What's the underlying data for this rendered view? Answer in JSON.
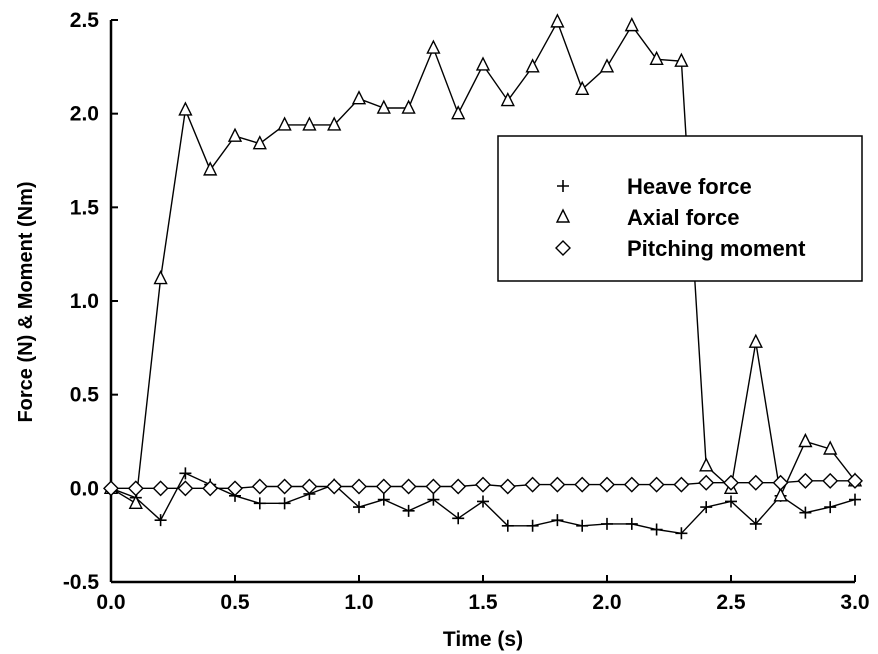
{
  "chart_data": {
    "type": "line",
    "title": "",
    "xlabel": "Time (s)",
    "ylabel": "Force (N) & Moment (Nm)",
    "xlim": [
      0.0,
      3.0
    ],
    "ylim": [
      -0.5,
      2.5
    ],
    "xticks": [
      0.0,
      0.5,
      1.0,
      1.5,
      2.0,
      2.5,
      3.0
    ],
    "xtick_labels": [
      "0.0",
      "0.5",
      "1.0",
      "1.5",
      "2.0",
      "2.5",
      "3.0"
    ],
    "yticks": [
      -0.5,
      0.0,
      0.5,
      1.0,
      1.5,
      2.0,
      2.5
    ],
    "ytick_labels": [
      "-0.5",
      "0.0",
      "0.5",
      "1.0",
      "1.5",
      "2.0",
      "2.5"
    ],
    "grid": false,
    "legend_position": "upper-right",
    "x": [
      0.0,
      0.1,
      0.2,
      0.3,
      0.4,
      0.5,
      0.6,
      0.7,
      0.8,
      0.9,
      1.0,
      1.1,
      1.2,
      1.3,
      1.4,
      1.5,
      1.6,
      1.7,
      1.8,
      1.9,
      2.0,
      2.1,
      2.2,
      2.3,
      2.4,
      2.5,
      2.6,
      2.7,
      2.8,
      2.9,
      3.0
    ],
    "series": [
      {
        "name": "Heave force",
        "marker": "plus",
        "values": [
          0.0,
          -0.05,
          -0.17,
          0.08,
          0.02,
          -0.04,
          -0.08,
          -0.08,
          -0.03,
          0.02,
          -0.1,
          -0.06,
          -0.12,
          -0.06,
          -0.16,
          -0.07,
          -0.2,
          -0.2,
          -0.17,
          -0.2,
          -0.19,
          -0.19,
          -0.22,
          -0.24,
          -0.1,
          -0.07,
          -0.19,
          -0.04,
          -0.13,
          -0.1,
          -0.06
        ]
      },
      {
        "name": "Axial force",
        "marker": "triangle",
        "values": [
          0.0,
          -0.08,
          1.12,
          2.02,
          1.7,
          1.88,
          1.84,
          1.94,
          1.94,
          1.94,
          2.08,
          2.03,
          2.03,
          2.35,
          2.0,
          2.26,
          2.07,
          2.25,
          2.49,
          2.13,
          2.25,
          2.47,
          2.29,
          2.28,
          0.12,
          0.0,
          0.78,
          -0.04,
          0.25,
          0.21,
          0.04
        ]
      },
      {
        "name": "Pitching moment",
        "marker": "diamond",
        "values": [
          0.0,
          0.0,
          0.0,
          0.0,
          0.0,
          0.0,
          0.01,
          0.01,
          0.01,
          0.01,
          0.01,
          0.01,
          0.01,
          0.01,
          0.01,
          0.02,
          0.01,
          0.02,
          0.02,
          0.02,
          0.02,
          0.02,
          0.02,
          0.02,
          0.03,
          0.03,
          0.03,
          0.03,
          0.04,
          0.04,
          0.04
        ]
      }
    ]
  }
}
